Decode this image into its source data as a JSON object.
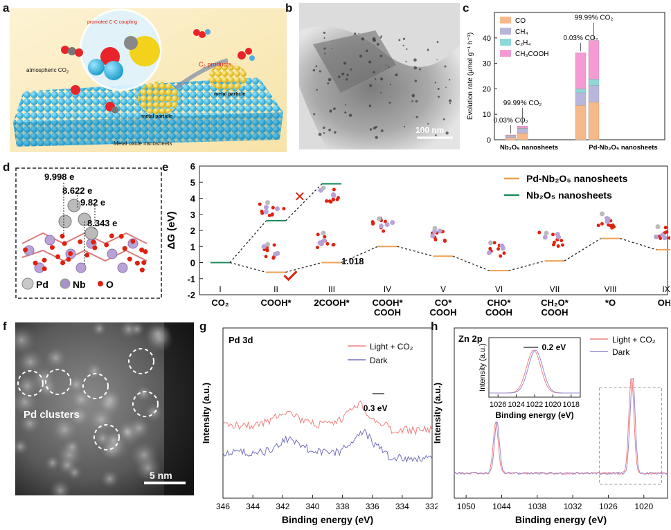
{
  "panels": {
    "a": {
      "letter": "a",
      "labels": {
        "coupling": "promoted C-C coupling",
        "atm": "atmospheric CO",
        "atm_sub": "2",
        "c2": "C",
        "c2_sub": "2",
        "c2_rest": " products",
        "metal1": "metal particle",
        "metal2": "metal particle",
        "sheet": "Metal oxide nanosheets"
      }
    },
    "b": {
      "letter": "b",
      "scale": "100 nm"
    },
    "c": {
      "letter": "c",
      "chart_data": {
        "type": "bar",
        "stacked": true,
        "ylabel": "Evolution rate (μmol g⁻¹ h⁻¹)",
        "ylim": [
          0,
          50
        ],
        "yticks": [
          0,
          10,
          20,
          30,
          40
        ],
        "groups": [
          "Nb₂O₅ nanosheets",
          "Pd-Nb₂O₅ nanosheets"
        ],
        "bars": [
          {
            "group": 0,
            "label": "0.03% CO₂",
            "CO": 0.9,
            "CH4": 0.6,
            "C2H4": 0.1,
            "CH3COOH": 0.3
          },
          {
            "group": 0,
            "label": "99.99% CO₂",
            "CO": 2.6,
            "CH4": 1.8,
            "C2H4": 0.2,
            "CH3COOH": 0.8
          },
          {
            "group": 1,
            "label": "0.03% CO₂",
            "CO": 13.5,
            "CH4": 5.0,
            "C2H4": 1.5,
            "CH3COOH": 14.2
          },
          {
            "group": 1,
            "label": "99.99% CO₂",
            "CO": 14.8,
            "CH4": 6.5,
            "C2H4": 2.5,
            "CH3COOH": 15.2
          }
        ],
        "series": [
          {
            "name": "CO",
            "color": "#f8b98a"
          },
          {
            "name": "CH₄",
            "color": "#b9b6dc"
          },
          {
            "name": "C₂H₄",
            "color": "#8fd8d8"
          },
          {
            "name": "CH₃COOH",
            "color": "#f59ad2"
          }
        ],
        "legend": "top-left"
      }
    },
    "d": {
      "letter": "d",
      "charges": [
        "9.998 e",
        "8.622 e",
        "9.82 e",
        "8.343 e"
      ],
      "legend": [
        "Pd",
        "Nb",
        "O"
      ]
    },
    "e": {
      "letter": "e",
      "chart_data": {
        "type": "line",
        "ylabel": "ΔG (eV)",
        "ylim": [
          -2,
          6
        ],
        "yticks": [
          -2,
          -1,
          0,
          1,
          2,
          3,
          4,
          5,
          6
        ],
        "steps": [
          "I",
          "II",
          "III",
          "IV",
          "V",
          "VI",
          "VII",
          "VIII",
          "IX"
        ],
        "species": [
          [
            "CO₂"
          ],
          [
            "COOH*"
          ],
          [
            "2COOH*"
          ],
          [
            "COOH*",
            "COOH"
          ],
          [
            "CO*",
            "COOH"
          ],
          [
            "CHO*",
            "COOH"
          ],
          [
            "CH₂O*",
            "COOH"
          ],
          [
            "*O"
          ],
          [
            "OH*"
          ]
        ],
        "series": [
          {
            "name": "Pd-Nb₂O₅ nanosheets",
            "color": "#f0a050",
            "values": [
              0,
              -0.6,
              0,
              1.0,
              0.4,
              -0.5,
              0.1,
              1.5,
              0.8
            ]
          },
          {
            "name": "Nb₂O₅ nanosheets",
            "color": "#1a8c5a",
            "values": [
              0,
              2.6,
              4.9
            ]
          }
        ],
        "annotation": "1.018"
      }
    },
    "f": {
      "letter": "f",
      "label": "Pd clusters",
      "scale": "5 nm"
    },
    "g": {
      "letter": "g",
      "chart_data": {
        "type": "line",
        "title": "Pd 3d",
        "xlabel": "Binding energy (eV)",
        "ylabel": "Intensity (a.u.)",
        "xlim": [
          346,
          332
        ],
        "xticks": [
          346,
          344,
          342,
          340,
          338,
          336,
          334,
          332
        ],
        "series": [
          {
            "name": "Light + CO₂",
            "color": "#f08080"
          },
          {
            "name": "Dark",
            "color": "#7070c0"
          }
        ],
        "annotation": "0.3 eV"
      }
    },
    "h": {
      "letter": "h",
      "chart_data": {
        "type": "line",
        "title": "Zn 2p",
        "xlabel": "Binding energy (eV)",
        "ylabel": "Intensity (a.u.)",
        "xlim": [
          1052,
          1016
        ],
        "xticks": [
          1050,
          1044,
          1038,
          1032,
          1026,
          1020
        ],
        "series": [
          {
            "name": "Light + CO₂",
            "color": "#f08080"
          },
          {
            "name": "Dark",
            "color": "#9a88d0"
          }
        ],
        "inset": {
          "xlabel": "Binding energy (eV)",
          "ylabel": "Intensity (a.u.)",
          "xticks": [
            1026,
            1024,
            1022,
            1020,
            1018
          ],
          "annotation": "0.2 eV"
        }
      }
    }
  }
}
